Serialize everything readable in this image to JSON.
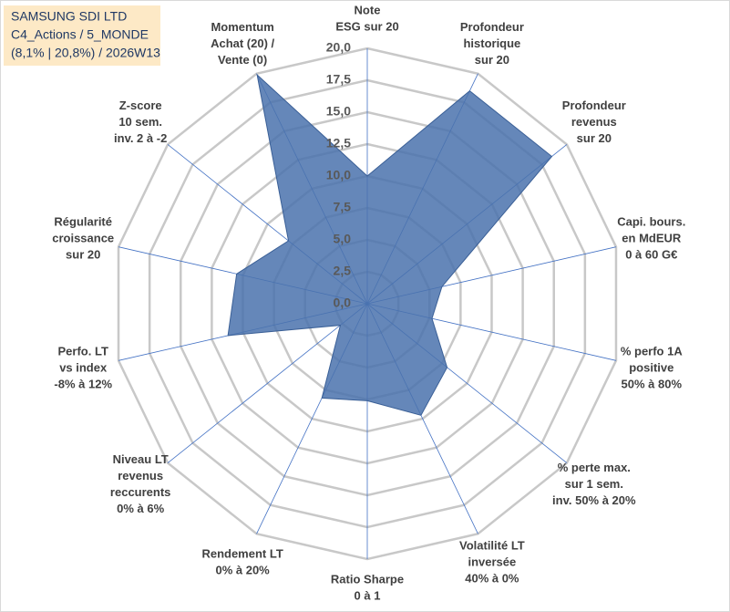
{
  "chart_data": {
    "type": "radar",
    "title": [
      "SAMSUNG SDI LTD",
      "C4_Actions / 5_MONDE",
      "(8,1% | 20,8%) / 2026W13"
    ],
    "categories": [
      [
        "Note",
        "ESG sur 20"
      ],
      [
        "Profondeur",
        "historique",
        "sur 20"
      ],
      [
        "Profondeur",
        "revenus",
        "sur 20"
      ],
      [
        "Capi. bours.",
        "en MdEUR",
        "0 à 60 G€"
      ],
      [
        "% perfo 1A",
        "positive",
        "50% à 80%"
      ],
      [
        "% perte max.",
        "sur 1 sem.",
        "inv. 50% à 20%"
      ],
      [
        "Volatilité LT",
        "inversée",
        "40% à 0%"
      ],
      [
        "Ratio Sharpe",
        "0 à 1"
      ],
      [
        "Rendement LT",
        "0% à 20%"
      ],
      [
        "Niveau LT",
        "revenus",
        "reccurents",
        "0% à 6%"
      ],
      [
        "Perfo. LT",
        "vs index",
        "-8% à 12%"
      ],
      [
        "Régularité",
        "croissance",
        "sur 20"
      ],
      [
        "Z-score",
        "10 sem.",
        "inv. 2 à -2"
      ],
      [
        "Momentum",
        "Achat (20) /",
        "Vente (0)"
      ]
    ],
    "values": [
      10,
      18.5,
      18.5,
      6,
      5.2,
      8,
      9.7,
      7.6,
      8.2,
      2.7,
      11.2,
      10.5,
      7.9,
      19.9
    ],
    "color": "#4a72ad",
    "ylim": [
      0,
      20
    ],
    "yticks": [
      {
        "value": 0,
        "label": "0,0"
      },
      {
        "value": 2.5,
        "label": "2,5"
      },
      {
        "value": 5,
        "label": "5,0"
      },
      {
        "value": 7.5,
        "label": "7,5"
      },
      {
        "value": 10,
        "label": "10,0"
      },
      {
        "value": 12.5,
        "label": "12,5"
      },
      {
        "value": 15,
        "label": "15,0"
      },
      {
        "value": 17.5,
        "label": "17,5"
      },
      {
        "value": 20,
        "label": "20,0"
      }
    ],
    "grid": true
  }
}
